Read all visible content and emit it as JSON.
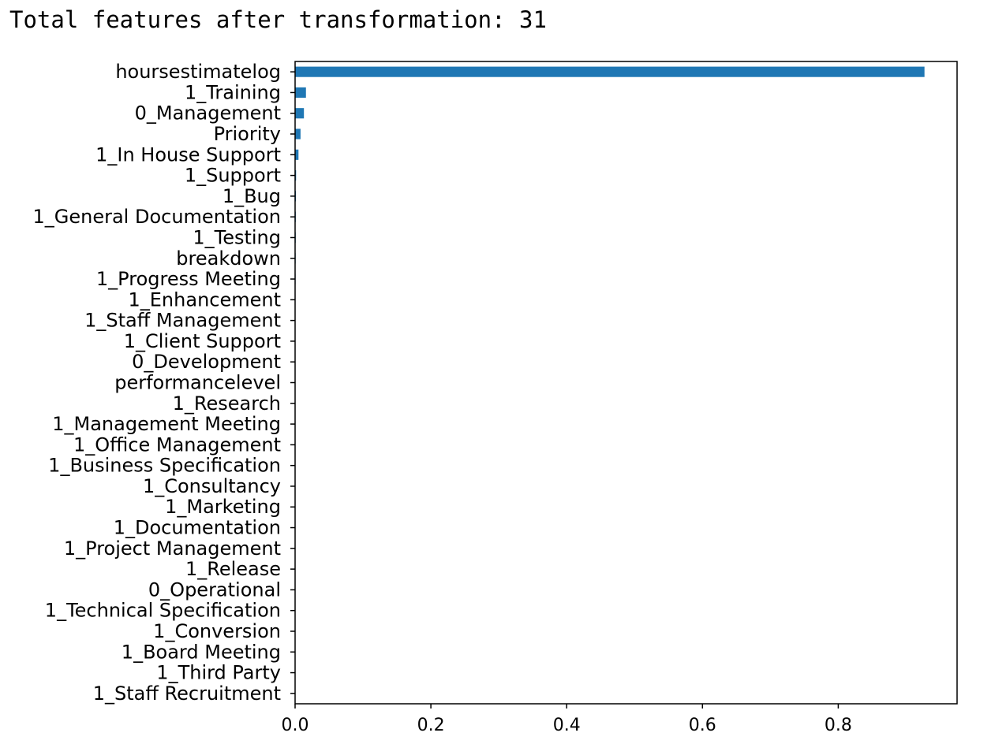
{
  "output": {
    "text": "Total features after transformation: 31"
  },
  "chart_data": {
    "type": "bar",
    "orientation": "horizontal",
    "title": "",
    "xlabel": "",
    "ylabel": "",
    "xlim": [
      0,
      0.975
    ],
    "xticks": [
      0.0,
      0.2,
      0.4,
      0.6,
      0.8
    ],
    "xtick_labels": [
      "0.0",
      "0.2",
      "0.4",
      "0.6",
      "0.8"
    ],
    "grid": false,
    "bar_color": "#1f77b4",
    "categories": [
      "hoursestimatelog",
      "1_Training",
      "0_Management",
      "Priority",
      "1_In House Support",
      "1_Support",
      "1_Bug",
      "1_General Documentation",
      "1_Testing",
      "breakdown",
      "1_Progress Meeting",
      "1_Enhancement",
      "1_Staff Management",
      "1_Client Support",
      "0_Development",
      "performancelevel",
      "1_Research",
      "1_Management Meeting",
      "1_Office Management",
      "1_Business Specification",
      "1_Consultancy",
      "1_Marketing",
      "1_Documentation",
      "1_Project Management",
      "1_Release",
      "0_Operational",
      "1_Technical Specification",
      "1_Conversion",
      "1_Board Meeting",
      "1_Third Party",
      "1_Staff Recruitment"
    ],
    "values": [
      0.927,
      0.016,
      0.013,
      0.008,
      0.005,
      0.0015,
      0.0012,
      0.001,
      0.0009,
      0.0008,
      0.0007,
      0.0006,
      0.0005,
      0.0005,
      0.0004,
      0.0004,
      0.0003,
      0.0003,
      0.0003,
      0.0002,
      0.0002,
      0.0002,
      0.0002,
      0.0001,
      0.0001,
      0.0001,
      0.0001,
      0.0001,
      0.0001,
      0.0,
      0.0
    ]
  }
}
